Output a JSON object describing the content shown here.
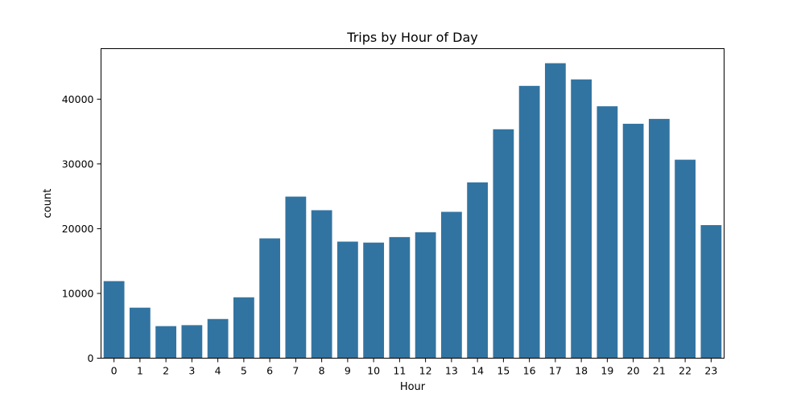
{
  "chart_data": {
    "type": "bar",
    "title": "Trips by Hour of Day",
    "xlabel": "Hour",
    "ylabel": "count",
    "categories": [
      "0",
      "1",
      "2",
      "3",
      "4",
      "5",
      "6",
      "7",
      "8",
      "9",
      "10",
      "11",
      "12",
      "13",
      "14",
      "15",
      "16",
      "17",
      "18",
      "19",
      "20",
      "21",
      "22",
      "23"
    ],
    "values": [
      11900,
      7800,
      4950,
      5100,
      6050,
      9400,
      18500,
      24950,
      22850,
      18000,
      17850,
      18700,
      19450,
      22600,
      27150,
      35350,
      42050,
      45550,
      43050,
      38900,
      36200,
      36950,
      30650,
      20550
    ],
    "ylim": [
      0,
      47800
    ],
    "yticks": [
      0,
      10000,
      20000,
      30000,
      40000
    ],
    "grid": false,
    "legend": "none",
    "bar_color": "#3274a1"
  }
}
